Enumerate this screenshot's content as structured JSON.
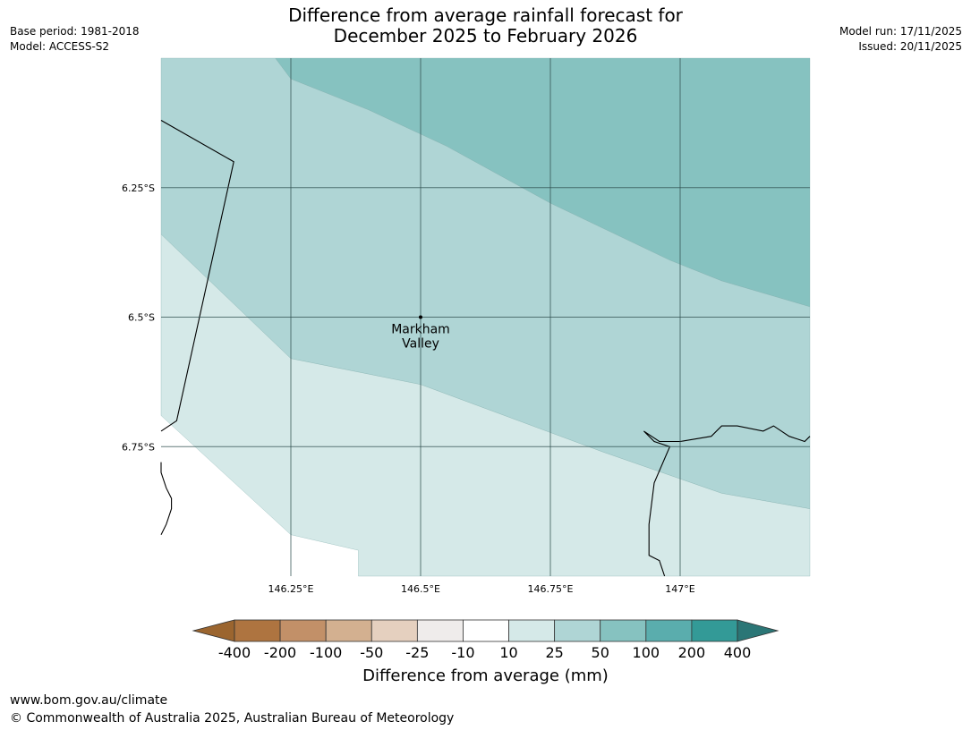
{
  "header": {
    "title_line1": "Difference from average rainfall forecast for",
    "title_line2": "December 2025 to February 2026",
    "base_period": "Base period: 1981-2018",
    "model": "Model: ACCESS-S2",
    "model_run": "Model run: 17/11/2025",
    "issued": "Issued: 20/11/2025"
  },
  "map": {
    "lon_range": [
      146.0,
      147.25
    ],
    "lat_range": [
      -6.0,
      -7.0
    ],
    "lon_ticks": [
      {
        "value": 146.25,
        "label": "146.25°E"
      },
      {
        "value": 146.5,
        "label": "146.5°E"
      },
      {
        "value": 146.75,
        "label": "146.75°E"
      },
      {
        "value": 147.0,
        "label": "147°E"
      }
    ],
    "lat_ticks": [
      {
        "value": -6.25,
        "label": "6.25°S"
      },
      {
        "value": -6.5,
        "label": "6.5°S"
      },
      {
        "value": -6.75,
        "label": "6.75°S"
      }
    ],
    "place": {
      "name_line1": "Markham",
      "name_line2": "Valley",
      "lon": 146.5,
      "lat": -6.5
    },
    "regions": [
      {
        "category": "50 to 100",
        "color": "#86c2c0",
        "points": [
          [
            146.22,
            -6.0
          ],
          [
            146.25,
            -6.04
          ],
          [
            146.4,
            -6.1
          ],
          [
            146.55,
            -6.17
          ],
          [
            146.75,
            -6.28
          ],
          [
            146.98,
            -6.39
          ],
          [
            147.08,
            -6.43
          ],
          [
            147.25,
            -6.48
          ],
          [
            147.25,
            -6.0
          ]
        ]
      },
      {
        "category": "25 to 50",
        "color": "#afd5d5",
        "points": [
          [
            146.0,
            -6.0
          ],
          [
            146.22,
            -6.0
          ],
          [
            146.25,
            -6.04
          ],
          [
            146.4,
            -6.1
          ],
          [
            146.55,
            -6.17
          ],
          [
            146.75,
            -6.28
          ],
          [
            146.98,
            -6.39
          ],
          [
            147.08,
            -6.43
          ],
          [
            147.25,
            -6.48
          ],
          [
            147.25,
            -6.87
          ],
          [
            147.08,
            -6.84
          ],
          [
            146.85,
            -6.76
          ],
          [
            146.5,
            -6.63
          ],
          [
            146.25,
            -6.58
          ],
          [
            146.0,
            -6.34
          ]
        ]
      },
      {
        "category": "10 to 25",
        "color": "#d5e9e8",
        "points": [
          [
            146.0,
            -6.34
          ],
          [
            146.25,
            -6.58
          ],
          [
            146.5,
            -6.63
          ],
          [
            146.85,
            -6.76
          ],
          [
            147.08,
            -6.84
          ],
          [
            147.25,
            -6.87
          ],
          [
            147.25,
            -7.0
          ],
          [
            146.38,
            -7.0
          ],
          [
            146.38,
            -6.95
          ],
          [
            146.25,
            -6.92
          ],
          [
            146.0,
            -6.69
          ]
        ]
      }
    ],
    "boundaries": [
      {
        "name": "border-line",
        "points": [
          [
            146.0,
            -6.12
          ],
          [
            146.14,
            -6.2
          ],
          [
            146.03,
            -6.7
          ],
          [
            146.0,
            -6.72
          ]
        ]
      },
      {
        "name": "coast-west",
        "points": [
          [
            146.0,
            -6.78
          ],
          [
            146.0,
            -6.8
          ],
          [
            146.01,
            -6.83
          ],
          [
            146.02,
            -6.85
          ],
          [
            146.02,
            -6.87
          ],
          [
            146.01,
            -6.9
          ],
          [
            146.0,
            -6.92
          ]
        ]
      },
      {
        "name": "coast-east",
        "points": [
          [
            147.25,
            -6.73
          ],
          [
            147.24,
            -6.74
          ],
          [
            147.21,
            -6.73
          ],
          [
            147.18,
            -6.71
          ],
          [
            147.16,
            -6.72
          ],
          [
            147.11,
            -6.71
          ],
          [
            147.08,
            -6.71
          ],
          [
            147.06,
            -6.73
          ],
          [
            147.0,
            -6.74
          ],
          [
            146.96,
            -6.74
          ],
          [
            146.93,
            -6.72
          ],
          [
            146.95,
            -6.74
          ],
          [
            146.98,
            -6.75
          ],
          [
            146.95,
            -6.82
          ],
          [
            146.94,
            -6.9
          ],
          [
            146.94,
            -6.96
          ],
          [
            146.96,
            -6.97
          ],
          [
            146.97,
            -7.0
          ]
        ]
      }
    ]
  },
  "colorbar": {
    "label": "Difference from average (mm)",
    "ticks": [
      "-400",
      "-200",
      "-100",
      "-50",
      "-25",
      "-10",
      "10",
      "25",
      "50",
      "100",
      "200",
      "400"
    ],
    "colors": [
      "#9b652f",
      "#ae7440",
      "#c29068",
      "#d3b090",
      "#e5d0bf",
      "#efeceb",
      "#ffffff",
      "#d5e9e8",
      "#afd5d5",
      "#86c2c0",
      "#5aadad",
      "#339a97",
      "#2b7676"
    ]
  },
  "footer": {
    "url": "www.bom.gov.au/climate",
    "copyright": "© Commonwealth of Australia 2025, Australian Bureau of Meteorology"
  }
}
